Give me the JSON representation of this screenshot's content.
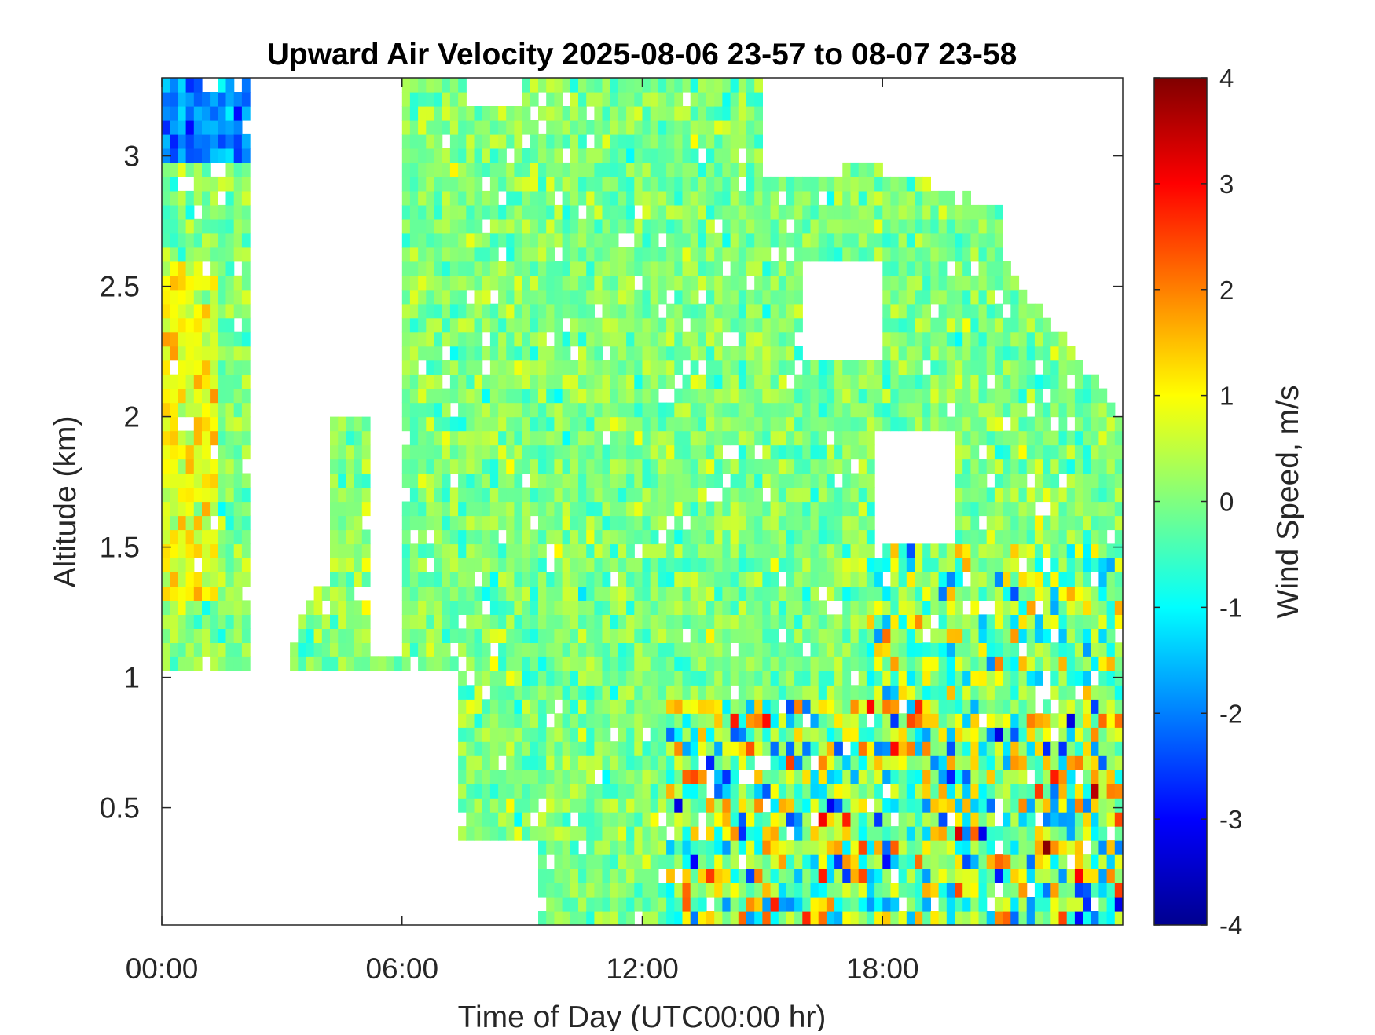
{
  "chart_data": {
    "type": "heatmap",
    "title": "Upward Air Velocity 2025-08-06 23-57 to 08-07 23-58",
    "xlabel": "Time of Day (UTC00:00 hr)",
    "ylabel": "Altitude (km)",
    "colorbar_label": "Wind Speed, m/s",
    "xlim": [
      0,
      24
    ],
    "ylim": [
      0.05,
      3.3
    ],
    "clim": [
      -4,
      4
    ],
    "colormap": "jet",
    "x_ticks": [
      {
        "value": 0,
        "label": "00:00"
      },
      {
        "value": 6,
        "label": "06:00"
      },
      {
        "value": 12,
        "label": "12:00"
      },
      {
        "value": 18,
        "label": "18:00"
      }
    ],
    "y_ticks": [
      {
        "value": 0.5,
        "label": "0.5"
      },
      {
        "value": 1,
        "label": "1"
      },
      {
        "value": 1.5,
        "label": "1.5"
      },
      {
        "value": 2,
        "label": "2"
      },
      {
        "value": 2.5,
        "label": "2.5"
      },
      {
        "value": 3,
        "label": "3"
      }
    ],
    "colorbar_ticks": [
      {
        "value": -4,
        "label": "-4"
      },
      {
        "value": -3,
        "label": "-3"
      },
      {
        "value": -2,
        "label": "-2"
      },
      {
        "value": -1,
        "label": "-1"
      },
      {
        "value": 0,
        "label": "0"
      },
      {
        "value": 1,
        "label": "1"
      },
      {
        "value": 2,
        "label": "2"
      },
      {
        "value": 3,
        "label": "3"
      },
      {
        "value": 4,
        "label": "4"
      }
    ],
    "grid": false,
    "colorbar_position": "right"
  }
}
